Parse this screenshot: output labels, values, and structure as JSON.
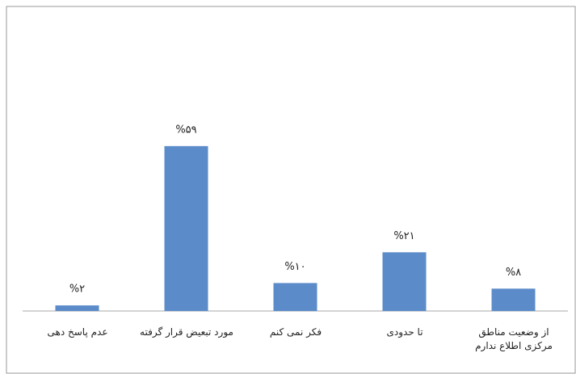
{
  "chart_data": {
    "type": "bar",
    "categories": [
      "عدم پاسخ دهی",
      "مورد تبعیض قرار گرفته",
      "فکر نمی کنم",
      "تا حدودی",
      "از وضعیت مناطق مرکزی اطلاع ندارم"
    ],
    "values": [
      2,
      59,
      10,
      21,
      8
    ],
    "value_labels": [
      "%۲",
      "%۵۹",
      "%۱۰",
      "%۲۱",
      "%۸"
    ],
    "color": "#5b8bc9",
    "ylim": [
      0,
      100
    ]
  }
}
